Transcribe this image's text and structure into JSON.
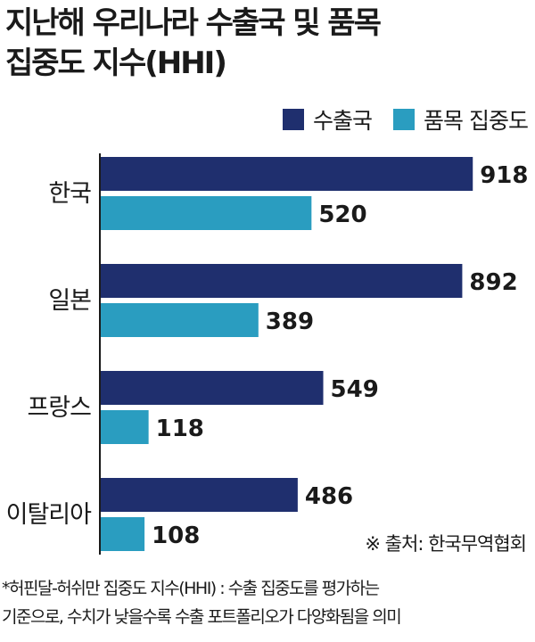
{
  "title_lines": [
    "지난해 우리나라 수출국 및 품목",
    "집중도 지수(HHI)"
  ],
  "colors": {
    "export_country": "#1f2f6e",
    "product": "#2a9dc0",
    "axis": "#1a1a1a"
  },
  "chart_data": {
    "type": "bar",
    "orientation": "horizontal",
    "title": "지난해 우리나라 수출국 및 품목 집중도 지수(HHI)",
    "categories": [
      "한국",
      "일본",
      "프랑스",
      "이탈리아"
    ],
    "series": [
      {
        "name": "수출국",
        "values": [
          918,
          892,
          549,
          486
        ]
      },
      {
        "name": "품목 집중도",
        "values": [
          520,
          389,
          118,
          108
        ]
      }
    ],
    "xlim": [
      0,
      1000
    ],
    "grid": false,
    "legend": "top-right"
  },
  "source": "※ 출처: 한국무역협회",
  "footnote_lines": [
    "*허핀달-허쉬만 집중도 지수(HHI) : 수출 집중도를 평가하는",
    "기준으로, 수치가 낮을수록 수출 포트폴리오가 다양화됨을 의미"
  ]
}
